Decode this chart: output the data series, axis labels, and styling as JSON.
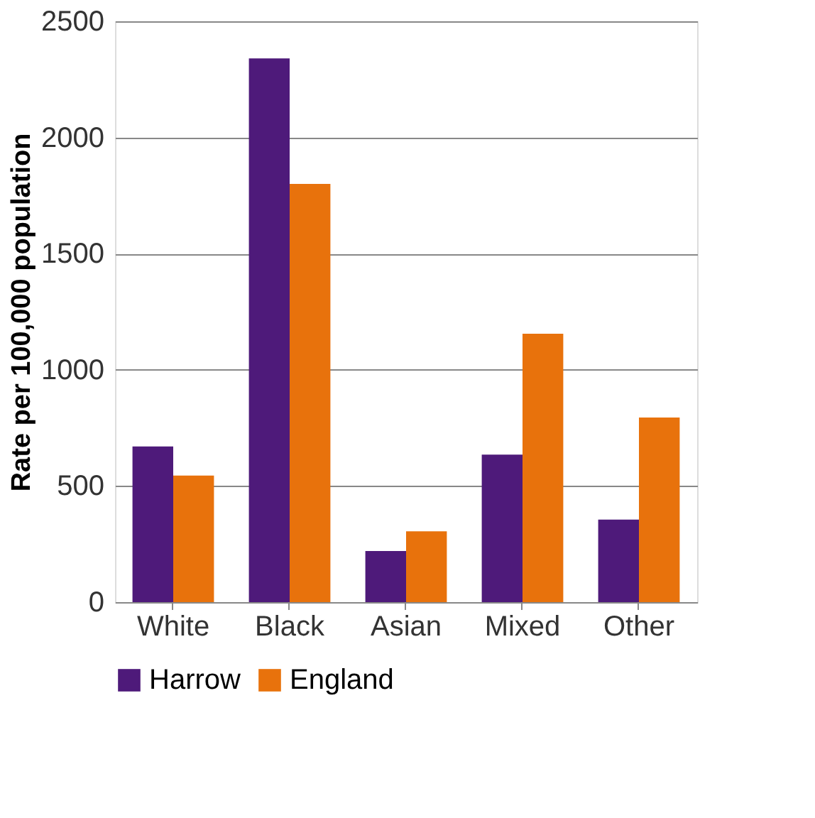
{
  "chart_data": {
    "type": "bar",
    "ylabel": "Rate per 100,000 population",
    "categories": [
      "White",
      "Black",
      "Asian",
      "Mixed",
      "Other"
    ],
    "series": [
      {
        "name": "Harrow",
        "color": "#4e1a7a",
        "values": [
          670,
          2340,
          220,
          635,
          355
        ]
      },
      {
        "name": "England",
        "color": "#e8720c",
        "values": [
          545,
          1800,
          305,
          1155,
          795
        ]
      }
    ],
    "ylim": [
      0,
      2500
    ],
    "yticks": [
      0,
      500,
      1000,
      1500,
      2000,
      2500
    ],
    "grid": "y",
    "legend": "bottom"
  }
}
